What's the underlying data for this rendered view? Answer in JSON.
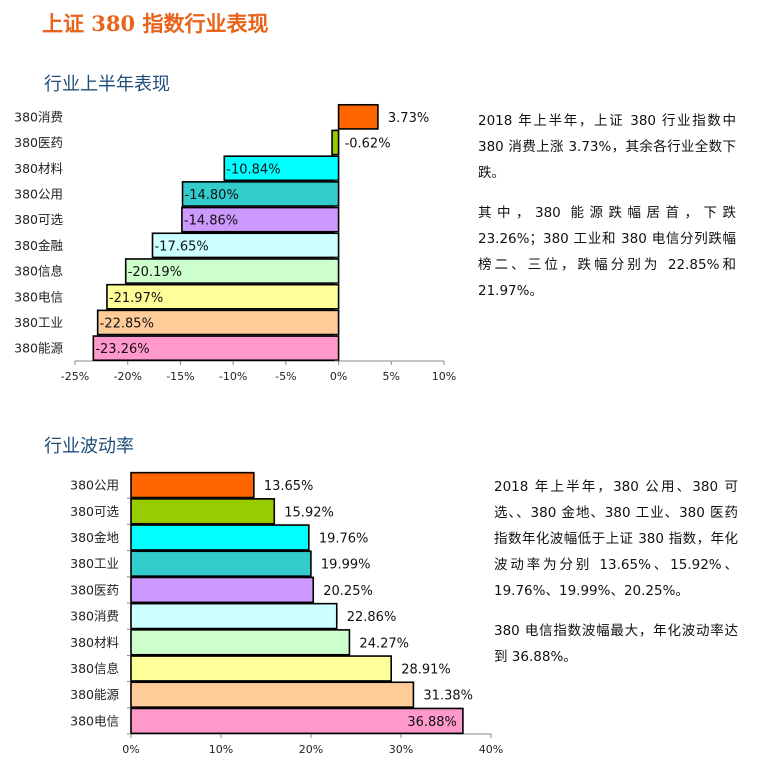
{
  "title": "上证 380 指数行业表现",
  "section1": {
    "heading": "行业上半年表现",
    "paragraphs": [
      "2018 年上半年，上证 380 行业指数中 380 消费上涨 3.73%，其余各行业全数下跌。",
      "其中，380 能源跌幅居首，下跌 23.26%；380 工业和 380 电信分列跌幅榜二、三位，跌幅分别为 22.85%和 21.97%。"
    ]
  },
  "section2": {
    "heading": "行业波动率",
    "paragraphs": [
      "2018 年上半年，380 公用、380 可选、、380 金地、380 工业、380 医药指数年化波幅低于上证 380 指数，年化波动率为分别 13.65%、15.92%、19.76%、19.99%、20.25%。",
      "380 电信指数波幅最大，年化波动率达到 36.88%。"
    ]
  },
  "chart_data": [
    {
      "type": "bar",
      "orientation": "horizontal",
      "categories": [
        "380消费",
        "380医药",
        "380材料",
        "380公用",
        "380可选",
        "380金融",
        "380信息",
        "380电信",
        "380工业",
        "380能源"
      ],
      "values": [
        3.73,
        -0.62,
        -10.84,
        -14.8,
        -14.86,
        -17.65,
        -20.19,
        -21.97,
        -22.85,
        -23.26
      ],
      "data_labels": [
        "3.73%",
        "-0.62%",
        "-10.84%",
        "-14.80%",
        "-14.86%",
        "-17.65%",
        "-20.19%",
        "-21.97%",
        "-22.85%",
        "-23.26%"
      ],
      "colors": [
        "#FF6600",
        "#99CC00",
        "#00FFFF",
        "#33CCCC",
        "#CC99FF",
        "#CCFFFF",
        "#CCFFCC",
        "#FFFF99",
        "#FFCC99",
        "#FF99CC"
      ],
      "xlim": [
        -25,
        10
      ],
      "xticks": [
        "-25%",
        "-20%",
        "-15%",
        "-10%",
        "-5%",
        "0%",
        "5%",
        "10%"
      ],
      "grid": false
    },
    {
      "type": "bar",
      "orientation": "horizontal",
      "categories": [
        "380公用",
        "380可选",
        "380金地",
        "380工业",
        "380医药",
        "380消费",
        "380材料",
        "380信息",
        "380能源",
        "380电信"
      ],
      "values": [
        13.65,
        15.92,
        19.76,
        19.99,
        20.25,
        22.86,
        24.27,
        28.91,
        31.38,
        36.88
      ],
      "data_labels": [
        "13.65%",
        "15.92%",
        "19.76%",
        "19.99%",
        "20.25%",
        "22.86%",
        "24.27%",
        "28.91%",
        "31.38%",
        "36.88%"
      ],
      "colors": [
        "#FF6600",
        "#99CC00",
        "#00FFFF",
        "#33CCCC",
        "#CC99FF",
        "#CCFFFF",
        "#CCFFCC",
        "#FFFF99",
        "#FFCC99",
        "#FF99CC"
      ],
      "xlim": [
        0,
        40
      ],
      "xticks": [
        "0%",
        "10%",
        "20%",
        "30%",
        "40%"
      ],
      "grid": false
    }
  ]
}
